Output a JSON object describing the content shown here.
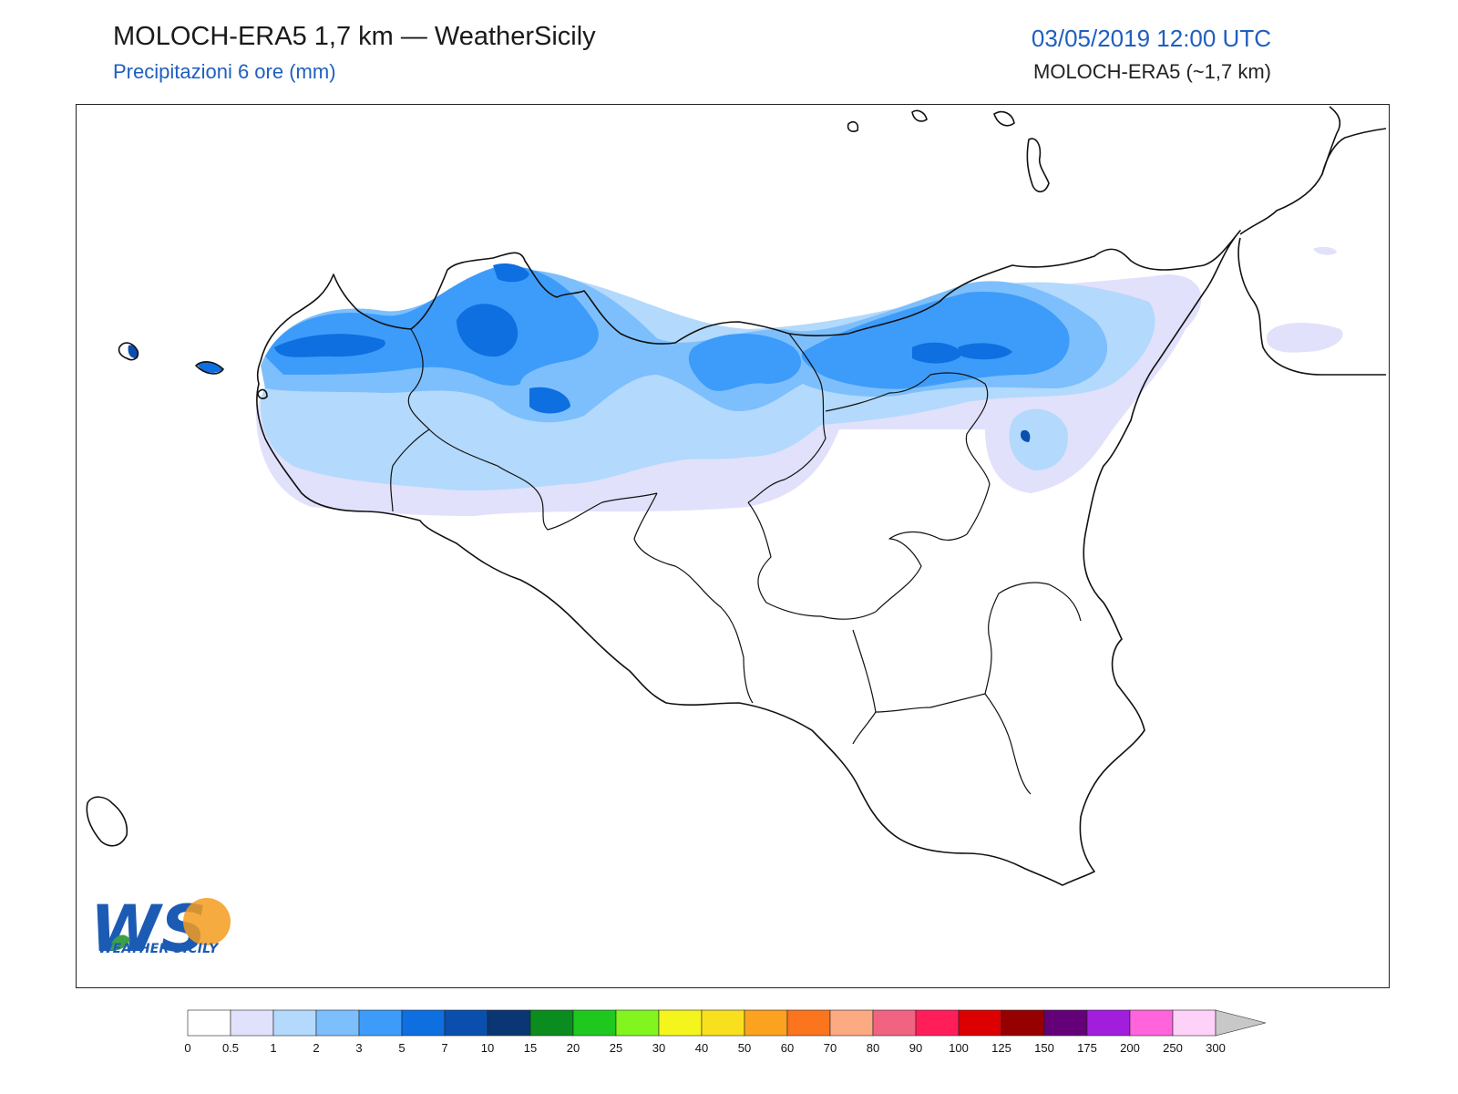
{
  "header": {
    "title": "MOLOCH-ERA5 1,7 km — WeatherSicily",
    "subtitle": "Precipitazioni 6 ore (mm)",
    "datetime": "03/05/2019 12:00 UTC",
    "model": "MOLOCH-ERA5 (~1,7 km)"
  },
  "logo": {
    "mark": "WS",
    "text": "WEATHER SICILY",
    "colors": {
      "blue": "#1c5bb4",
      "green": "#3aa046",
      "orange": "#f39c1e"
    }
  },
  "colorbar": {
    "levels": [
      "0",
      "0.5",
      "1",
      "2",
      "3",
      "5",
      "7",
      "10",
      "15",
      "20",
      "25",
      "30",
      "40",
      "50",
      "60",
      "70",
      "80",
      "90",
      "100",
      "125",
      "150",
      "175",
      "200",
      "250",
      "300"
    ],
    "colors": [
      "#ffffff",
      "#e1e1fb",
      "#b3d9fc",
      "#7dbffc",
      "#3d9cfa",
      "#0d6fe0",
      "#0b4fae",
      "#0a3673",
      "#0a8c1e",
      "#1ec81e",
      "#82f51e",
      "#f5f51e",
      "#f8e01e",
      "#fba21e",
      "#fb741e",
      "#fcaa82",
      "#f06482",
      "#ff1e5a",
      "#dc0000",
      "#960000",
      "#640078",
      "#a01edc",
      "#ff64dc",
      "#fed2f8"
    ],
    "extend_color": "#c8c8c8"
  },
  "precip_palette": {
    "0.5": "#e1e1fb",
    "1": "#b3d9fc",
    "2": "#7dbffc",
    "3": "#3d9cfa",
    "5": "#0d6fe0",
    "7": "#0b4fae"
  }
}
